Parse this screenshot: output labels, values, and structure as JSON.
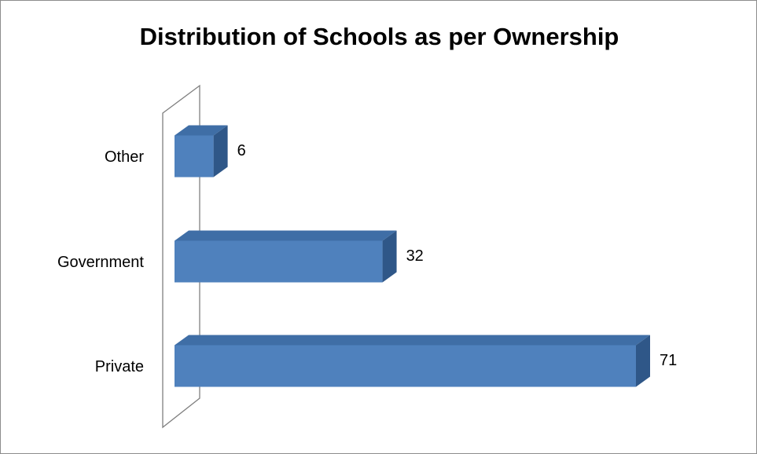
{
  "chart_data": {
    "type": "bar",
    "orientation": "horizontal",
    "style": "3d",
    "title": "Distribution of Schools as per Ownership",
    "categories": [
      "Private",
      "Government",
      "Other"
    ],
    "values": [
      71,
      32,
      6
    ],
    "data_labels": [
      "71",
      "32",
      "6"
    ],
    "xlim": [
      0,
      75
    ],
    "grid": false,
    "legend": "none",
    "colors": {
      "bar_front": "#4f81bd",
      "bar_top": "#3f6ea6",
      "bar_side": "#2f5788",
      "wall_stroke": "#7f7f7f"
    }
  }
}
